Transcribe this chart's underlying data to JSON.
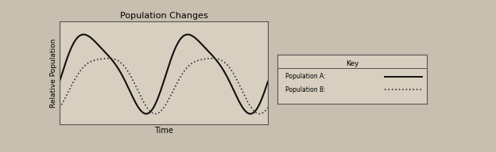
{
  "title": "Population Changes",
  "xlabel": "Time",
  "ylabel": "Relative Population",
  "bg_color": "#c8bfb0",
  "plot_bg_color": "#d8cfc0",
  "line_a_color": "#111111",
  "line_b_color": "#333333",
  "key_labels": [
    "Population A:",
    "Population B:"
  ],
  "fig_width": 6.24,
  "fig_height": 1.92,
  "dpi": 100
}
